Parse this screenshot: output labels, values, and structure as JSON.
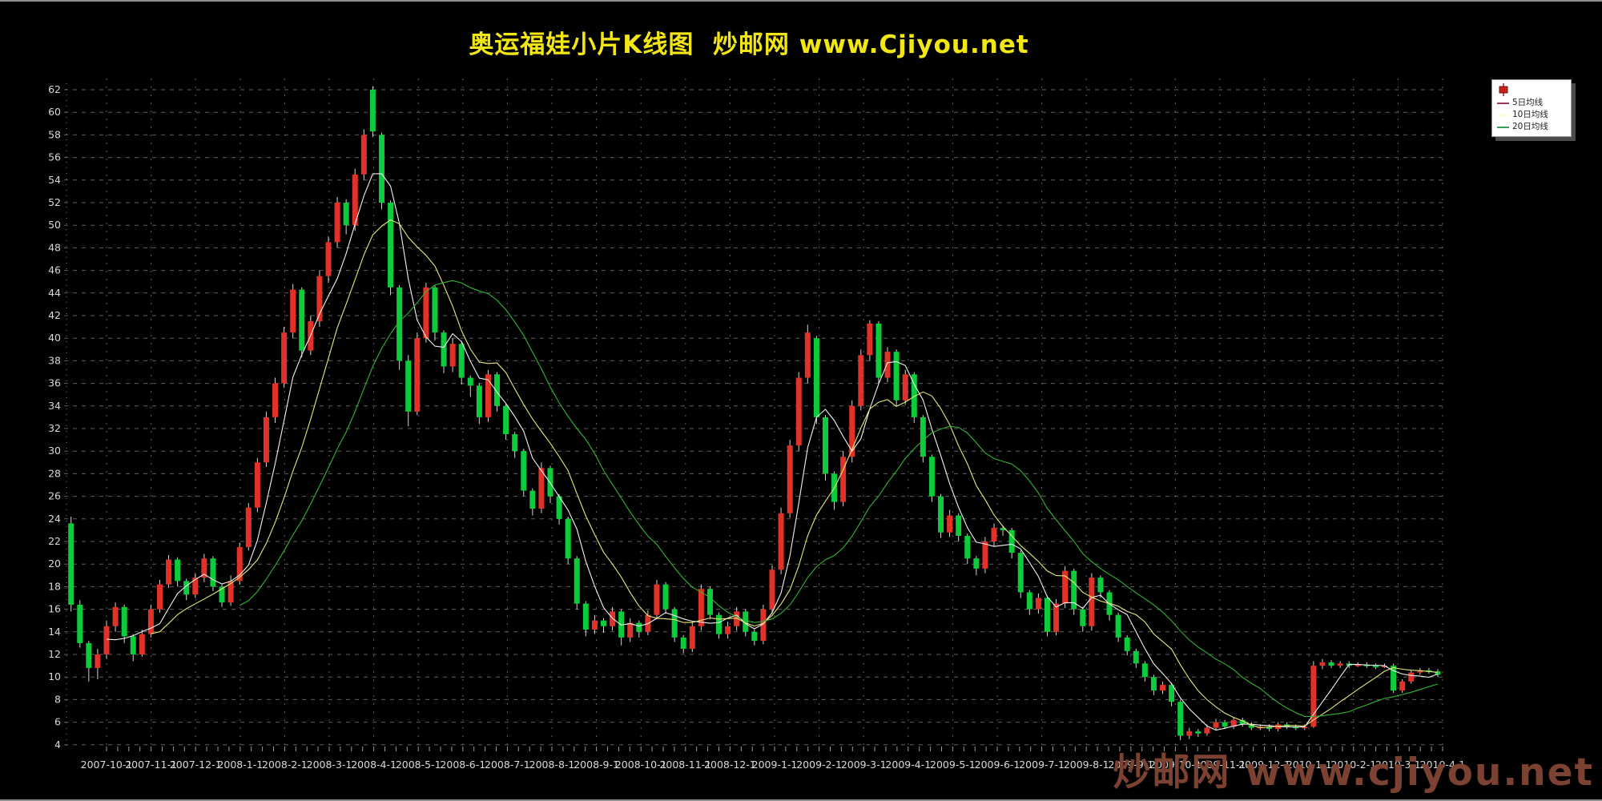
{
  "title": "奥运福娃小片K线图  炒邮网 www.Cjiyou.net",
  "title_color": "#f2e714",
  "watermark": "炒邮网 www.cjiyou.net",
  "legend": {
    "candle_icon": "red-candlestick",
    "items": [
      {
        "label": "5日均线",
        "swatch_color": "#9a3a55",
        "line_color": "#f2f2f2"
      },
      {
        "label": "10日均线",
        "swatch_color": "#fdfdc8",
        "line_color": "#e9e878"
      },
      {
        "label": "20日均线",
        "swatch_color": "#3d9e57",
        "line_color": "#33b533"
      }
    ]
  },
  "chart_data": {
    "type": "candlestick",
    "title": "奥运福娃小片K线图",
    "ylim": [
      4,
      62
    ],
    "y_ticks": [
      62,
      60,
      58,
      56,
      54,
      52,
      50,
      48,
      46,
      44,
      42,
      40,
      38,
      36,
      34,
      32,
      30,
      28,
      26,
      24,
      22,
      20,
      18,
      16,
      14,
      12,
      10,
      8,
      6,
      4
    ],
    "x_labels": [
      "2007-10-1",
      "2007-11-1",
      "2007-12-1",
      "2008-1-1",
      "2008-2-1",
      "2008-3-1",
      "2008-4-1",
      "2008-5-1",
      "2008-6-1",
      "2008-7-1",
      "2008-8-1",
      "2008-9-1",
      "2008-10-1",
      "2008-11-1",
      "2008-12-1",
      "2009-1-1",
      "2009-2-1",
      "2009-3-1",
      "2009-4-1",
      "2009-5-1",
      "2009-6-1",
      "2009-7-1",
      "2009-8-1",
      "2009-9-1",
      "2009-10-1",
      "2009-11-1",
      "2009-12-1",
      "2010-1-1",
      "2010-2-1",
      "2010-3-1",
      "2010-4-1"
    ],
    "grid": true,
    "legend_position": "top-right",
    "ma_periods": [
      5,
      10,
      20
    ],
    "colors": {
      "up_candle": "#e03228",
      "down_candle": "#0ccc3c",
      "wick": "#d4d4d4",
      "grid": "#5f5f5f",
      "axis_text": "#d9d9d9",
      "ma5": "#f2f2f2",
      "ma10": "#e9e878",
      "ma20": "#33b533"
    },
    "candles": [
      [
        23.6,
        24.2,
        15.8,
        16.4
      ],
      [
        16.4,
        16.8,
        12.6,
        13.0
      ],
      [
        13.0,
        13.2,
        9.6,
        10.8
      ],
      [
        10.8,
        12.5,
        9.8,
        12.0
      ],
      [
        12.0,
        15.0,
        11.6,
        14.5
      ],
      [
        14.5,
        16.6,
        14.0,
        16.2
      ],
      [
        16.2,
        16.4,
        13.0,
        13.6
      ],
      [
        13.6,
        13.8,
        11.4,
        12.0
      ],
      [
        12.0,
        14.2,
        11.8,
        13.8
      ],
      [
        13.8,
        16.4,
        13.5,
        16.0
      ],
      [
        16.0,
        18.6,
        15.7,
        18.2
      ],
      [
        18.2,
        20.8,
        17.9,
        20.4
      ],
      [
        20.4,
        20.6,
        18.0,
        18.5
      ],
      [
        18.5,
        18.7,
        16.8,
        17.3
      ],
      [
        17.3,
        19.2,
        17.0,
        18.8
      ],
      [
        18.8,
        20.9,
        18.4,
        20.5
      ],
      [
        20.5,
        20.7,
        17.6,
        18.0
      ],
      [
        18.0,
        18.2,
        16.2,
        16.6
      ],
      [
        16.6,
        19.0,
        16.3,
        18.5
      ],
      [
        18.5,
        21.9,
        18.2,
        21.5
      ],
      [
        21.5,
        25.4,
        21.2,
        25.0
      ],
      [
        25.0,
        29.4,
        24.6,
        29.0
      ],
      [
        29.0,
        33.5,
        28.6,
        33.0
      ],
      [
        33.0,
        36.5,
        32.5,
        36.0
      ],
      [
        36.0,
        41.0,
        35.6,
        40.5
      ],
      [
        40.5,
        44.8,
        40.0,
        44.3
      ],
      [
        44.3,
        44.5,
        38.3,
        38.9
      ],
      [
        38.9,
        42.0,
        38.5,
        41.5
      ],
      [
        41.5,
        46.0,
        41.0,
        45.5
      ],
      [
        45.5,
        49.0,
        44.9,
        48.5
      ],
      [
        48.5,
        52.5,
        48.0,
        52.0
      ],
      [
        52.0,
        52.3,
        49.2,
        50.0
      ],
      [
        50.0,
        55.0,
        49.5,
        54.5
      ],
      [
        54.5,
        58.5,
        54.0,
        58.0
      ],
      [
        62.0,
        62.3,
        57.8,
        58.3
      ],
      [
        58.0,
        58.2,
        51.4,
        52.0
      ],
      [
        52.0,
        52.2,
        43.8,
        44.5
      ],
      [
        44.5,
        44.7,
        37.2,
        38.0
      ],
      [
        38.0,
        38.5,
        32.2,
        33.5
      ],
      [
        33.5,
        40.5,
        33.2,
        40.0
      ],
      [
        40.0,
        44.9,
        39.6,
        44.5
      ],
      [
        44.5,
        44.7,
        39.8,
        40.5
      ],
      [
        40.5,
        40.7,
        36.9,
        37.5
      ],
      [
        37.5,
        40.0,
        37.0,
        39.5
      ],
      [
        39.5,
        39.7,
        35.9,
        36.5
      ],
      [
        36.5,
        36.7,
        34.8,
        35.8
      ],
      [
        35.8,
        36.0,
        32.4,
        33.0
      ],
      [
        33.0,
        37.2,
        32.6,
        36.8
      ],
      [
        36.8,
        37.0,
        33.5,
        34.0
      ],
      [
        34.0,
        34.2,
        31.0,
        31.5
      ],
      [
        31.5,
        31.7,
        29.4,
        30.0
      ],
      [
        30.0,
        30.2,
        26.0,
        26.5
      ],
      [
        26.5,
        26.7,
        24.3,
        24.9
      ],
      [
        24.9,
        29.0,
        24.5,
        28.5
      ],
      [
        28.5,
        28.7,
        25.4,
        26.0
      ],
      [
        26.0,
        26.2,
        23.5,
        24.0
      ],
      [
        24.0,
        24.2,
        20.0,
        20.5
      ],
      [
        20.5,
        20.7,
        16.0,
        16.5
      ],
      [
        16.5,
        16.7,
        13.6,
        14.2
      ],
      [
        14.2,
        15.5,
        13.8,
        15.0
      ],
      [
        15.0,
        15.2,
        13.9,
        14.5
      ],
      [
        14.5,
        16.2,
        14.1,
        15.8
      ],
      [
        15.8,
        16.0,
        12.8,
        13.5
      ],
      [
        13.5,
        15.2,
        13.1,
        14.8
      ],
      [
        14.8,
        15.0,
        13.5,
        14.0
      ],
      [
        14.0,
        15.9,
        13.7,
        15.5
      ],
      [
        15.5,
        18.6,
        15.1,
        18.2
      ],
      [
        18.2,
        18.4,
        15.6,
        16.0
      ],
      [
        16.0,
        16.2,
        13.1,
        13.5
      ],
      [
        13.5,
        13.7,
        12.1,
        12.5
      ],
      [
        12.5,
        14.9,
        12.2,
        14.5
      ],
      [
        14.5,
        18.2,
        14.1,
        17.8
      ],
      [
        17.8,
        18.0,
        15.1,
        15.5
      ],
      [
        15.5,
        15.7,
        13.4,
        13.8
      ],
      [
        13.8,
        14.9,
        13.4,
        14.5
      ],
      [
        14.5,
        16.2,
        14.1,
        15.8
      ],
      [
        15.8,
        16.0,
        13.6,
        14.0
      ],
      [
        14.0,
        14.2,
        12.8,
        13.2
      ],
      [
        13.2,
        16.4,
        12.9,
        16.0
      ],
      [
        16.0,
        19.9,
        15.6,
        19.5
      ],
      [
        19.5,
        25.0,
        19.1,
        24.5
      ],
      [
        24.5,
        31.0,
        24.1,
        30.5
      ],
      [
        30.5,
        37.0,
        30.0,
        36.5
      ],
      [
        36.5,
        41.2,
        36.0,
        40.5
      ],
      [
        40.0,
        40.2,
        32.4,
        33.0
      ],
      [
        33.0,
        33.2,
        27.4,
        28.0
      ],
      [
        28.0,
        28.2,
        24.8,
        25.5
      ],
      [
        25.5,
        30.0,
        25.1,
        29.5
      ],
      [
        29.5,
        34.5,
        29.0,
        34.0
      ],
      [
        34.0,
        39.0,
        33.6,
        38.5
      ],
      [
        38.5,
        41.6,
        38.0,
        41.3
      ],
      [
        41.3,
        41.5,
        36.0,
        36.5
      ],
      [
        36.5,
        39.2,
        36.1,
        38.8
      ],
      [
        38.8,
        39.0,
        34.0,
        34.5
      ],
      [
        34.5,
        37.2,
        34.1,
        36.8
      ],
      [
        36.8,
        37.0,
        32.5,
        33.0
      ],
      [
        33.0,
        33.2,
        29.0,
        29.5
      ],
      [
        29.5,
        29.7,
        25.5,
        26.0
      ],
      [
        26.0,
        26.2,
        22.3,
        22.8
      ],
      [
        22.8,
        24.8,
        22.4,
        24.3
      ],
      [
        24.3,
        24.5,
        22.0,
        22.5
      ],
      [
        22.5,
        22.7,
        20.0,
        20.5
      ],
      [
        20.5,
        20.7,
        19.0,
        19.6
      ],
      [
        19.6,
        22.4,
        19.2,
        22.0
      ],
      [
        22.0,
        23.6,
        21.6,
        23.2
      ],
      [
        23.2,
        23.4,
        22.5,
        23.0
      ],
      [
        23.0,
        23.2,
        20.5,
        21.0
      ],
      [
        21.0,
        21.2,
        17.0,
        17.5
      ],
      [
        17.5,
        17.7,
        15.5,
        16.0
      ],
      [
        16.0,
        17.4,
        15.6,
        17.0
      ],
      [
        17.0,
        17.2,
        13.6,
        14.0
      ],
      [
        14.0,
        16.9,
        13.7,
        16.5
      ],
      [
        16.5,
        19.8,
        16.1,
        19.4
      ],
      [
        19.4,
        19.6,
        15.5,
        16.0
      ],
      [
        16.0,
        16.2,
        14.0,
        14.5
      ],
      [
        14.5,
        19.2,
        14.1,
        18.8
      ],
      [
        18.8,
        19.0,
        17.0,
        17.5
      ],
      [
        17.5,
        17.7,
        15.0,
        15.5
      ],
      [
        15.5,
        15.7,
        13.1,
        13.5
      ],
      [
        13.5,
        13.7,
        11.9,
        12.3
      ],
      [
        12.3,
        12.5,
        10.8,
        11.2
      ],
      [
        11.2,
        11.4,
        9.6,
        10.0
      ],
      [
        10.0,
        10.2,
        8.4,
        8.8
      ],
      [
        8.8,
        9.6,
        8.5,
        9.3
      ],
      [
        9.3,
        9.5,
        7.4,
        7.8
      ],
      [
        7.8,
        8.0,
        4.4,
        4.8
      ],
      [
        4.8,
        5.5,
        4.5,
        5.2
      ],
      [
        5.2,
        5.4,
        4.7,
        5.0
      ],
      [
        5.0,
        5.8,
        4.8,
        5.5
      ],
      [
        5.5,
        6.3,
        5.3,
        6.0
      ],
      [
        6.0,
        6.2,
        5.4,
        5.6
      ],
      [
        5.6,
        6.4,
        5.4,
        6.2
      ],
      [
        6.2,
        6.4,
        5.6,
        5.8
      ],
      [
        5.8,
        6.0,
        5.3,
        5.5
      ],
      [
        5.5,
        5.8,
        5.3,
        5.6
      ],
      [
        5.6,
        5.8,
        5.2,
        5.4
      ],
      [
        5.4,
        6.0,
        5.2,
        5.8
      ],
      [
        5.8,
        6.0,
        5.4,
        5.6
      ],
      [
        5.6,
        5.8,
        5.3,
        5.5
      ],
      [
        5.5,
        5.8,
        5.3,
        5.6
      ],
      [
        5.6,
        11.4,
        5.5,
        11.0
      ],
      [
        11.0,
        11.6,
        10.7,
        11.3
      ],
      [
        11.3,
        11.5,
        10.8,
        11.0
      ],
      [
        11.0,
        11.4,
        10.8,
        11.2
      ],
      [
        11.2,
        11.4,
        10.8,
        11.0
      ],
      [
        11.0,
        11.3,
        10.9,
        11.1
      ],
      [
        11.1,
        11.3,
        10.8,
        11.0
      ],
      [
        11.0,
        11.2,
        10.7,
        10.9
      ],
      [
        10.9,
        11.2,
        10.8,
        11.0
      ],
      [
        11.0,
        11.2,
        8.6,
        8.8
      ],
      [
        8.8,
        9.8,
        8.6,
        9.6
      ],
      [
        9.6,
        10.6,
        9.4,
        10.4
      ],
      [
        10.4,
        10.8,
        10.2,
        10.6
      ],
      [
        10.6,
        10.8,
        10.3,
        10.5
      ],
      [
        10.5,
        10.7,
        10.0,
        10.2
      ]
    ]
  }
}
